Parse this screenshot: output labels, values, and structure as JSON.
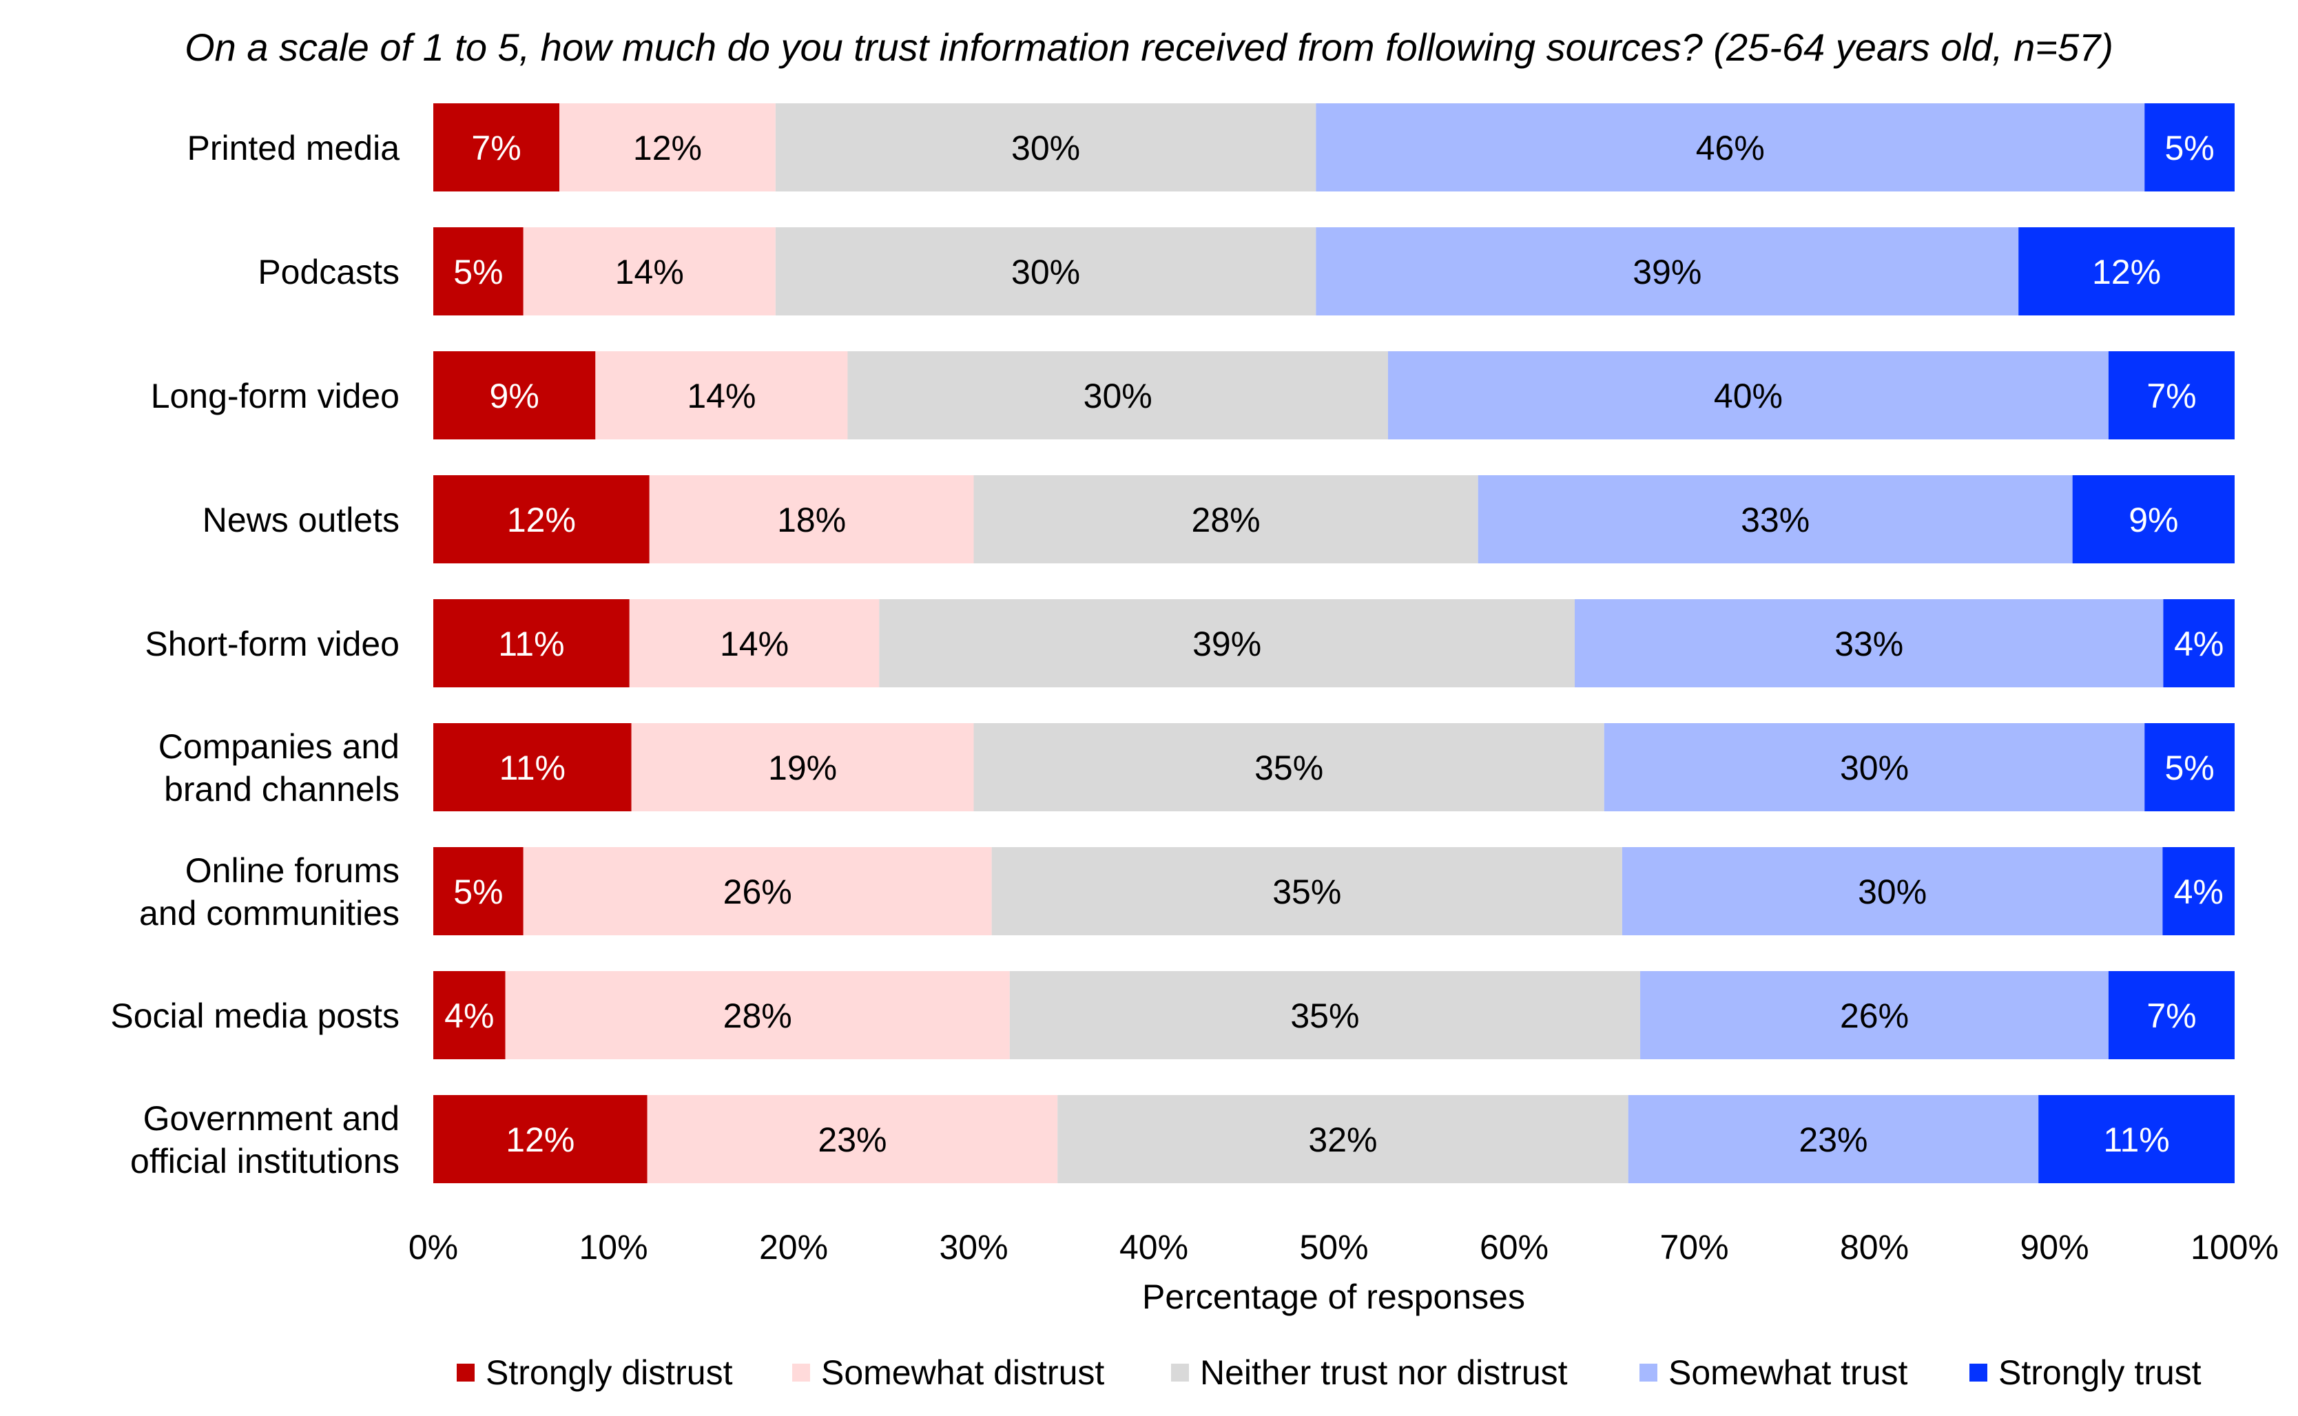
{
  "chart_data": {
    "type": "bar",
    "orientation": "horizontal",
    "stacked": true,
    "title": "On a scale of 1 to 5, how much do you trust information received from following sources? (25-64 years old, n=57)",
    "xlabel": "Percentage of responses",
    "ylabel": "",
    "xlim": [
      0,
      100
    ],
    "xticks": [
      "0%",
      "10%",
      "20%",
      "30%",
      "40%",
      "50%",
      "60%",
      "70%",
      "80%",
      "90%",
      "100%"
    ],
    "legend_position": "bottom",
    "categories": [
      [
        "Printed media"
      ],
      [
        "Podcasts"
      ],
      [
        "Long-form video"
      ],
      [
        "News outlets"
      ],
      [
        "Short-form video"
      ],
      [
        "Companies and",
        "brand channels"
      ],
      [
        "Online forums",
        "and communities"
      ],
      [
        "Social media posts"
      ],
      [
        "Government and",
        "official institutions"
      ]
    ],
    "series": [
      {
        "name": "Strongly distrust",
        "color": "#C00000",
        "label_color": "#FFFFFF",
        "values": [
          7,
          5,
          9,
          12,
          11,
          11,
          5,
          4,
          12
        ]
      },
      {
        "name": "Somewhat distrust",
        "color": "#FFDADA",
        "label_color": "#000000",
        "values": [
          12,
          14,
          14,
          18,
          14,
          19,
          26,
          28,
          23
        ]
      },
      {
        "name": "Neither trust nor distrust",
        "color": "#D9D9D9",
        "label_color": "#000000",
        "values": [
          30,
          30,
          30,
          28,
          39,
          35,
          35,
          35,
          32
        ]
      },
      {
        "name": "Somewhat trust",
        "color": "#A6B9FF",
        "label_color": "#000000",
        "values": [
          46,
          39,
          40,
          33,
          33,
          30,
          30,
          26,
          23
        ]
      },
      {
        "name": "Strongly trust",
        "color": "#0433FF",
        "label_color": "#FFFFFF",
        "values": [
          5,
          12,
          7,
          9,
          4,
          5,
          4,
          7,
          11
        ]
      }
    ]
  }
}
